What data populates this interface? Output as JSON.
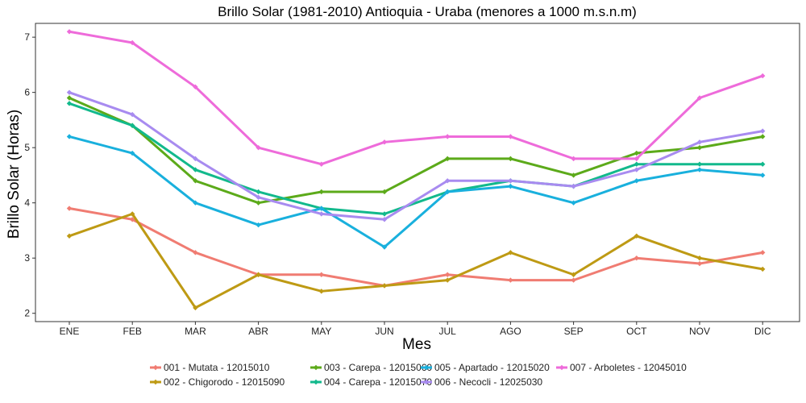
{
  "chart_data": {
    "type": "line",
    "title": "Brillo Solar (1981-2010) Antioquia - Uraba (menores a 1000 m.s.n.m)",
    "xlabel": "Mes",
    "ylabel": "Brillo Solar (Horas)",
    "categories": [
      "ENE",
      "FEB",
      "MAR",
      "ABR",
      "MAY",
      "JUN",
      "JUL",
      "AGO",
      "SEP",
      "OCT",
      "NOV",
      "DIC"
    ],
    "ylim": [
      1.85,
      7.25
    ],
    "yticks": [
      2,
      3,
      4,
      5,
      6,
      7
    ],
    "grid": false,
    "legend_position": "bottom",
    "series": [
      {
        "name": "001 - Mutata - 12015010",
        "color": "#F07C72",
        "values": [
          3.9,
          3.7,
          3.1,
          2.7,
          2.7,
          2.5,
          2.7,
          2.6,
          2.6,
          3.0,
          2.9,
          3.1
        ]
      },
      {
        "name": "002 - Chigorodo - 12015090",
        "color": "#BE9A14",
        "values": [
          3.4,
          3.8,
          2.1,
          2.7,
          2.4,
          2.5,
          2.6,
          3.1,
          2.7,
          3.4,
          3.0,
          2.8
        ]
      },
      {
        "name": "003 - Carepa - 12015060",
        "color": "#5CAA1A",
        "values": [
          5.9,
          5.4,
          4.4,
          4.0,
          4.2,
          4.2,
          4.8,
          4.8,
          4.5,
          4.9,
          5.0,
          5.2
        ]
      },
      {
        "name": "004 - Carepa - 12015070",
        "color": "#12B98C",
        "values": [
          5.8,
          5.4,
          4.6,
          4.2,
          3.9,
          3.8,
          4.2,
          4.4,
          4.3,
          4.7,
          4.7,
          4.7
        ]
      },
      {
        "name": "005 - Apartado - 12015020",
        "color": "#19B0DD",
        "values": [
          5.2,
          4.9,
          4.0,
          3.6,
          3.9,
          3.2,
          4.2,
          4.3,
          4.0,
          4.4,
          4.6,
          4.5
        ]
      },
      {
        "name": "006 - Necocli - 12025030",
        "color": "#A88BF0",
        "values": [
          6.0,
          5.6,
          4.8,
          4.1,
          3.8,
          3.7,
          4.4,
          4.4,
          4.3,
          4.6,
          5.1,
          5.3
        ]
      },
      {
        "name": "007 - Arboletes - 12045010",
        "color": "#EE6BDA",
        "values": [
          7.1,
          6.9,
          6.1,
          5.0,
          4.7,
          5.1,
          5.2,
          5.2,
          4.8,
          4.8,
          5.9,
          6.3
        ]
      }
    ]
  }
}
